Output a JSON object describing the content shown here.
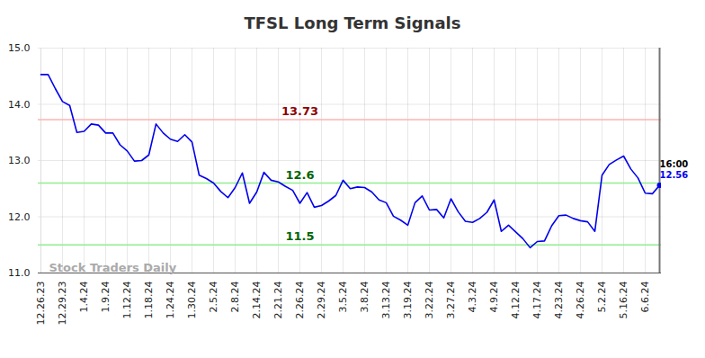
{
  "chart_data": {
    "type": "line",
    "title": "TFSL Long Term Signals",
    "watermark": "Stock Traders Daily",
    "end_time_label": "16:00",
    "color": "#0000ee",
    "grid": true,
    "categories": [
      "12.26.23",
      null,
      null,
      "12.29.23",
      null,
      null,
      "1.4.24",
      null,
      null,
      "1.9.24",
      null,
      null,
      "1.12.24",
      null,
      null,
      "1.18.24",
      null,
      null,
      "1.24.24",
      null,
      null,
      "1.30.24",
      null,
      null,
      "2.5.24",
      null,
      null,
      "2.8.24",
      null,
      null,
      "2.14.24",
      null,
      null,
      "2.21.24",
      null,
      null,
      "2.26.24",
      null,
      null,
      "2.29.24",
      null,
      null,
      "3.5.24",
      null,
      null,
      "3.8.24",
      null,
      null,
      "3.13.24",
      null,
      null,
      "3.19.24",
      null,
      null,
      "3.22.24",
      null,
      null,
      "3.27.24",
      null,
      null,
      "4.3.24",
      null,
      null,
      "4.9.24",
      null,
      null,
      "4.12.24",
      null,
      null,
      "4.17.24",
      null,
      null,
      "4.23.24",
      null,
      null,
      "4.26.24",
      null,
      null,
      "5.2.24",
      null,
      null,
      "5.16.24",
      null,
      null,
      "6.6.24",
      null,
      null
    ],
    "values": [
      14.53,
      14.53,
      14.28,
      14.05,
      13.98,
      13.5,
      13.52,
      13.65,
      13.63,
      13.49,
      13.49,
      13.28,
      13.17,
      12.99,
      13.0,
      13.1,
      13.65,
      13.49,
      13.38,
      13.34,
      13.46,
      13.33,
      12.74,
      12.68,
      12.6,
      12.45,
      12.34,
      12.52,
      12.78,
      12.24,
      12.44,
      12.79,
      12.65,
      12.62,
      12.54,
      12.47,
      12.24,
      12.43,
      12.17,
      12.2,
      12.28,
      12.38,
      12.65,
      12.5,
      12.53,
      12.52,
      12.44,
      12.3,
      12.25,
      12.01,
      11.94,
      11.85,
      12.25,
      12.37,
      12.12,
      12.13,
      11.98,
      12.32,
      12.09,
      11.92,
      11.9,
      11.97,
      12.08,
      12.3,
      11.74,
      11.85,
      11.73,
      11.61,
      11.45,
      11.56,
      11.57,
      11.84,
      12.02,
      12.03,
      11.97,
      11.93,
      11.91,
      11.74,
      12.74,
      12.93,
      13.01,
      13.08,
      12.85,
      12.69,
      12.42,
      12.41,
      12.56
    ],
    "levels": [
      {
        "value": 13.73,
        "color": "#ffb3b3",
        "label_color": "#8b0000"
      },
      {
        "value": 12.6,
        "color": "#90ee90",
        "label_color": "#006400"
      },
      {
        "value": 11.5,
        "color": "#90ee90",
        "label_color": "#006400"
      }
    ],
    "ylim": [
      11,
      15
    ],
    "yticks": [
      11,
      12,
      13,
      14,
      15
    ]
  }
}
